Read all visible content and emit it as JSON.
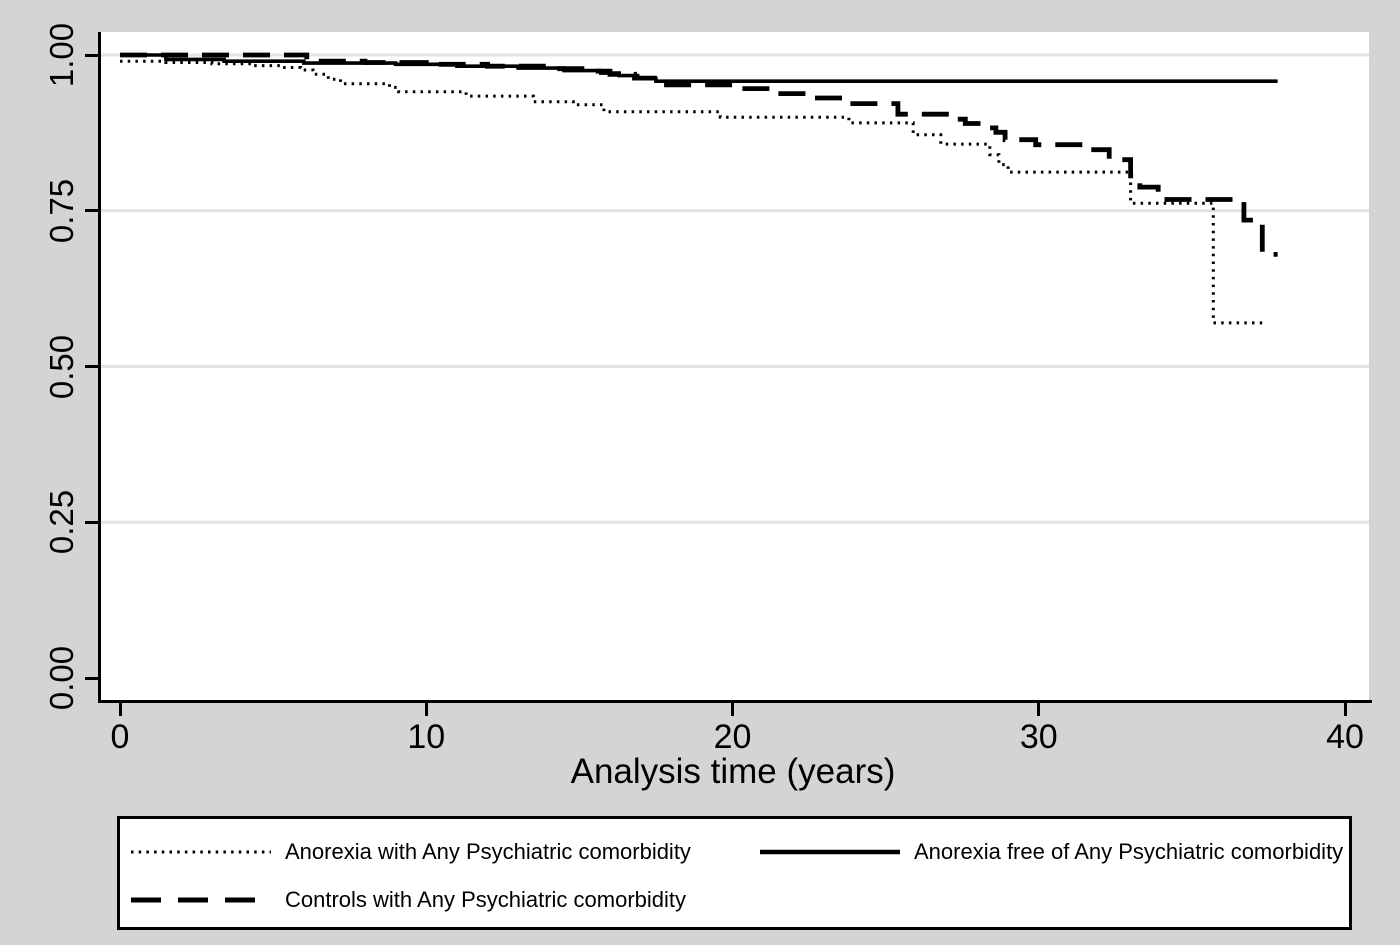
{
  "chart_data": {
    "type": "line",
    "subtype": "kaplan-meier-step",
    "title": "",
    "xlabel": "Analysis time (years)",
    "ylabel": "",
    "xlim": [
      0,
      40
    ],
    "ylim": [
      0.0,
      1.0
    ],
    "x_ticks": [
      0,
      10,
      20,
      30,
      40
    ],
    "y_ticks": [
      "0.00",
      "0.25",
      "0.50",
      "0.75",
      "1.00"
    ],
    "grid": "horizontal-light",
    "legend_position": "bottom-box",
    "line_color": "#000000",
    "plot_bg": "#ffffff",
    "canvas_bg": "#d4d4d4",
    "series": [
      {
        "name": "Anorexia with Any Psychiatric comorbidity",
        "style": "dotted",
        "points": [
          [
            0,
            0.99
          ],
          [
            1.5,
            0.988
          ],
          [
            3.0,
            0.986
          ],
          [
            4.3,
            0.983
          ],
          [
            5.3,
            0.98
          ],
          [
            5.9,
            0.976
          ],
          [
            6.3,
            0.969
          ],
          [
            6.8,
            0.961
          ],
          [
            7.2,
            0.954
          ],
          [
            8.8,
            0.948
          ],
          [
            9.1,
            0.941
          ],
          [
            11.3,
            0.934
          ],
          [
            13.5,
            0.925
          ],
          [
            14.8,
            0.92
          ],
          [
            15.8,
            0.909
          ],
          [
            19.6,
            0.9
          ],
          [
            23.8,
            0.891
          ],
          [
            25.9,
            0.872
          ],
          [
            26.8,
            0.857
          ],
          [
            28.4,
            0.84
          ],
          [
            28.7,
            0.824
          ],
          [
            29.0,
            0.812
          ],
          [
            33.0,
            0.762
          ],
          [
            35.7,
            0.57
          ],
          [
            37.3,
            0.57
          ]
        ]
      },
      {
        "name": "Anorexia free of Any Psychiatric comorbidity",
        "style": "solid",
        "points": [
          [
            0,
            1.0
          ],
          [
            1.5,
            0.993
          ],
          [
            3.4,
            0.99
          ],
          [
            6.0,
            0.987
          ],
          [
            9.0,
            0.985
          ],
          [
            11.0,
            0.982
          ],
          [
            13.0,
            0.979
          ],
          [
            14.5,
            0.975
          ],
          [
            15.7,
            0.971
          ],
          [
            16.3,
            0.967
          ],
          [
            16.9,
            0.962
          ],
          [
            17.5,
            0.958
          ],
          [
            37.8,
            0.958
          ]
        ]
      },
      {
        "name": "Controls with Any Psychiatric comorbidity",
        "style": "dashed",
        "points": [
          [
            0,
            1.0
          ],
          [
            6.1,
            0.99
          ],
          [
            8.0,
            0.988
          ],
          [
            10.0,
            0.985
          ],
          [
            12.0,
            0.982
          ],
          [
            14.0,
            0.978
          ],
          [
            15.2,
            0.974
          ],
          [
            16.0,
            0.969
          ],
          [
            16.8,
            0.963
          ],
          [
            17.6,
            0.952
          ],
          [
            20.4,
            0.946
          ],
          [
            21.4,
            0.938
          ],
          [
            22.6,
            0.931
          ],
          [
            23.6,
            0.922
          ],
          [
            25.4,
            0.905
          ],
          [
            27.2,
            0.897
          ],
          [
            27.6,
            0.89
          ],
          [
            28.1,
            0.883
          ],
          [
            28.6,
            0.876
          ],
          [
            28.9,
            0.864
          ],
          [
            29.9,
            0.856
          ],
          [
            31.6,
            0.848
          ],
          [
            32.3,
            0.832
          ],
          [
            33.0,
            0.806
          ],
          [
            33.3,
            0.788
          ],
          [
            33.9,
            0.768
          ],
          [
            36.7,
            0.735
          ],
          [
            37.3,
            0.68
          ],
          [
            37.8,
            0.68
          ]
        ]
      }
    ]
  }
}
